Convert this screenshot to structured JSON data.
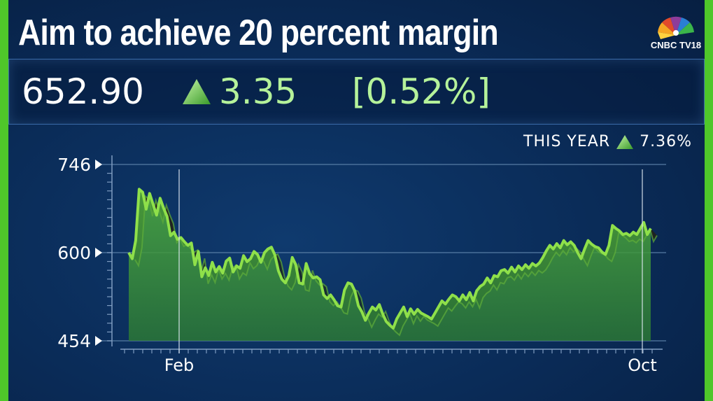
{
  "headline": "Aim to achieve 20 percent margin",
  "brand": {
    "logo_text": "CNBC TV18",
    "logo": "cnbc-peacock-logo"
  },
  "quote": {
    "price": "652.90",
    "change": "3.35",
    "change_pct": "[0.52%]",
    "direction_icon": "up-triangle-icon",
    "accent_color": "#b5f29a"
  },
  "ytd": {
    "label": "THIS YEAR",
    "value": "7.36%"
  },
  "chart_data": {
    "type": "area",
    "ylim": [
      454,
      746
    ],
    "yticks": [
      746,
      600,
      454
    ],
    "ytick_labels": [
      "746",
      "600",
      "454"
    ],
    "xtick_labels": [
      "Feb",
      "Oct"
    ],
    "line_color": "#8fe04a",
    "fill_color": "#3f9a3a",
    "x": [
      0,
      1,
      2,
      3,
      4,
      5,
      6,
      7,
      8,
      9,
      10,
      11,
      12,
      13,
      14,
      15,
      16,
      17,
      18,
      19,
      20,
      21,
      22,
      23,
      24,
      25,
      26,
      27,
      28,
      29,
      30,
      31,
      32,
      33,
      34,
      35,
      36,
      37,
      38,
      39,
      40,
      41,
      42,
      43,
      44,
      45,
      46,
      47,
      48,
      49,
      50,
      51,
      52,
      53,
      54,
      55,
      56,
      57,
      58,
      59,
      60,
      61,
      62,
      63,
      64,
      65,
      66,
      67,
      68,
      69,
      70,
      71,
      72,
      73,
      74,
      75,
      76,
      77,
      78,
      79,
      80,
      81,
      82,
      83,
      84,
      85,
      86,
      87,
      88,
      89,
      90,
      91,
      92,
      93,
      94,
      95,
      96,
      97,
      98,
      99,
      100,
      101,
      102,
      103,
      104,
      105,
      106,
      107,
      108,
      109,
      110,
      111,
      112,
      113,
      114,
      115,
      116,
      117,
      118,
      119,
      120,
      121,
      122,
      123,
      124,
      125,
      126,
      127,
      128,
      129,
      130,
      131,
      132,
      133,
      134,
      135,
      136,
      137,
      138,
      139,
      140,
      141,
      142,
      143,
      144,
      145,
      146,
      147,
      148,
      149,
      150
    ],
    "values": [
      600,
      590,
      620,
      705,
      700,
      672,
      698,
      680,
      662,
      690,
      674,
      660,
      628,
      634,
      622,
      625,
      618,
      612,
      616,
      580,
      602,
      560,
      575,
      562,
      584,
      568,
      577,
      566,
      586,
      591,
      568,
      578,
      574,
      595,
      585,
      590,
      602,
      597,
      584,
      600,
      606,
      609,
      596,
      570,
      556,
      550,
      562,
      592,
      580,
      550,
      548,
      582,
      565,
      558,
      560,
      555,
      530,
      524,
      530,
      522,
      512,
      510,
      538,
      550,
      548,
      536,
      512,
      502,
      488,
      500,
      510,
      505,
      514,
      498,
      486,
      480,
      475,
      490,
      500,
      510,
      494,
      507,
      498,
      506,
      500,
      497,
      494,
      490,
      500,
      510,
      520,
      515,
      523,
      530,
      527,
      520,
      530,
      522,
      534,
      520,
      537,
      544,
      548,
      558,
      550,
      562,
      560,
      570,
      572,
      566,
      576,
      568,
      578,
      572,
      580,
      574,
      582,
      578,
      583,
      592,
      603,
      612,
      606,
      615,
      608,
      620,
      613,
      618,
      612,
      600,
      590,
      606,
      620,
      614,
      610,
      608,
      601,
      597,
      612,
      645,
      640,
      636,
      630,
      632,
      628,
      634,
      630,
      640,
      650,
      630,
      640
    ]
  }
}
